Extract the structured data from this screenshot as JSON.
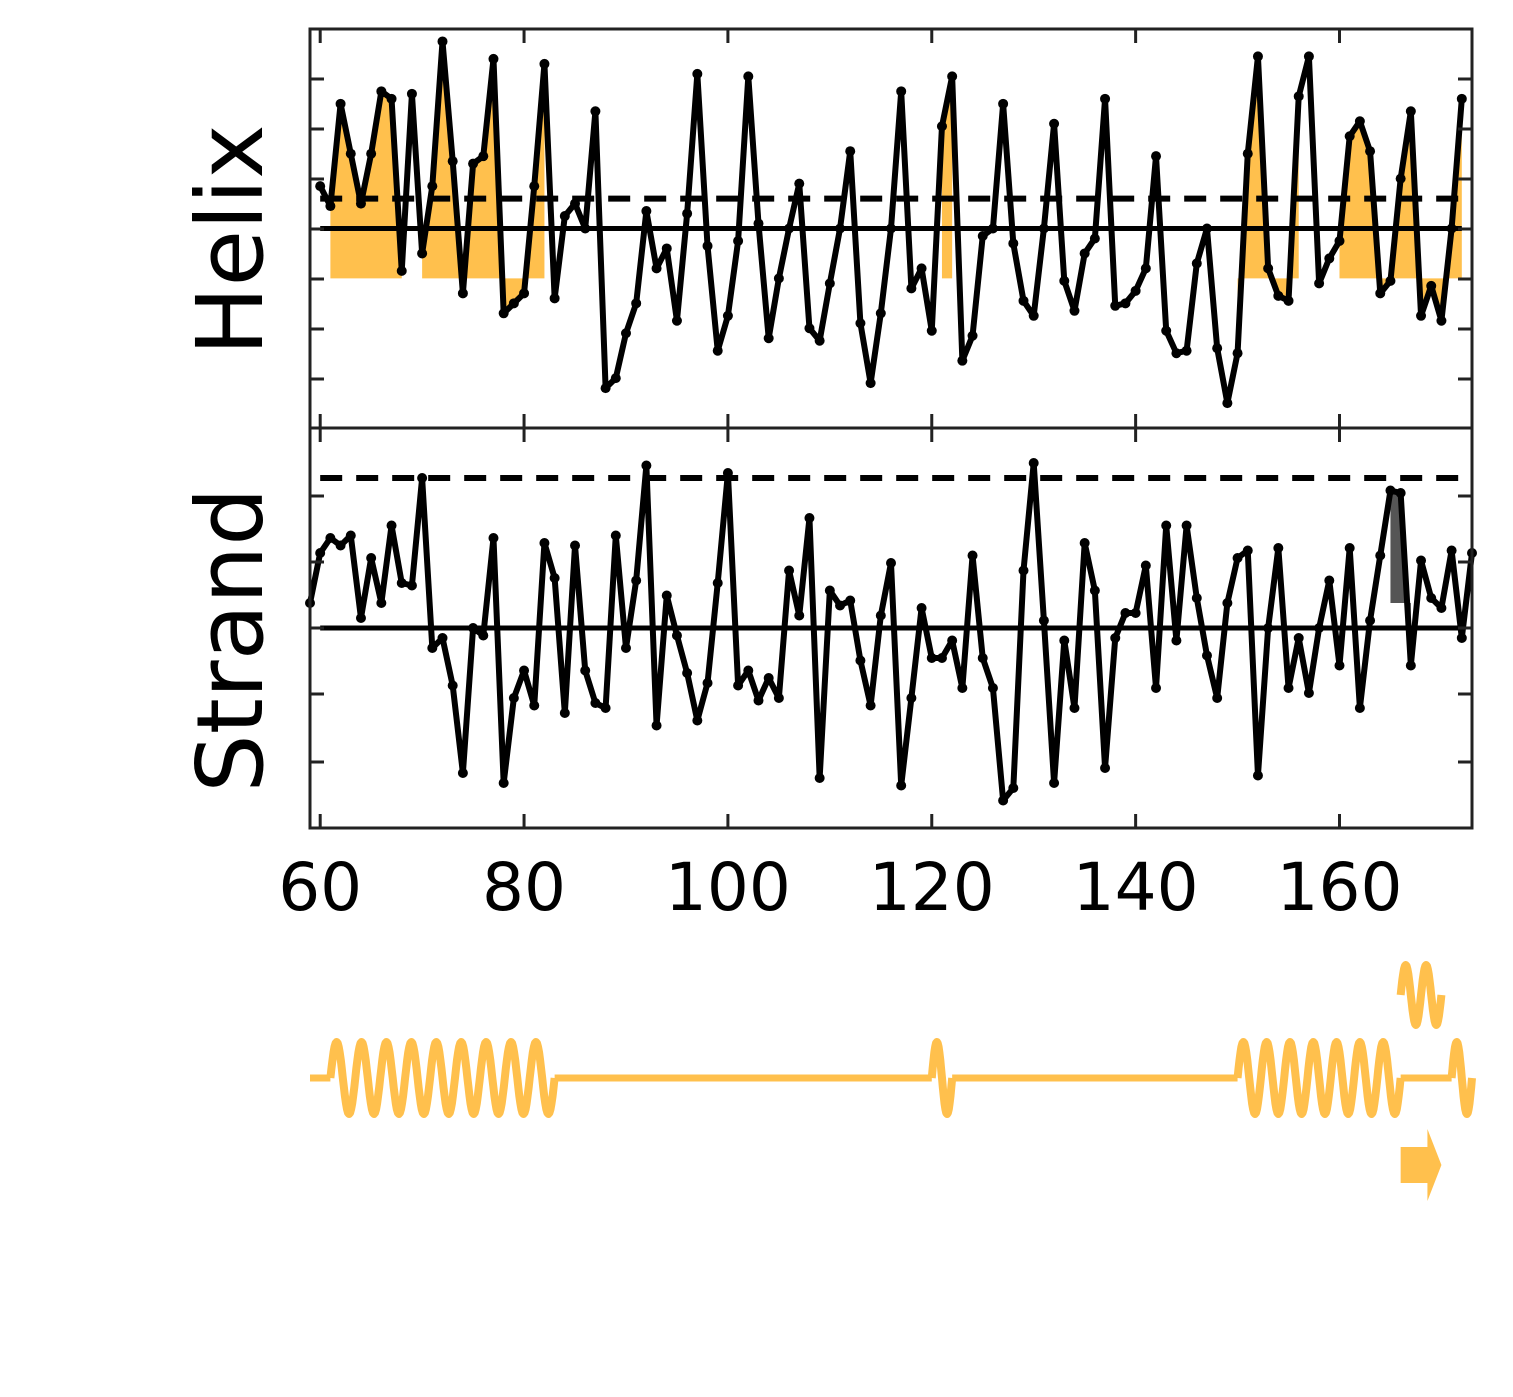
{
  "chart_data": [
    {
      "type": "line",
      "panel": "helix",
      "ylabel": "Helix",
      "xlim": [
        59,
        173
      ],
      "ylim": [
        -0.8,
        0.8
      ],
      "threshold_dashed": 0.12,
      "baseline_solid": 0.0,
      "fill_level": -0.2,
      "fill_color": "#ffc04d",
      "line_color": "#000000",
      "x": [
        60,
        61,
        62,
        63,
        64,
        65,
        66,
        67,
        68,
        69,
        70,
        71,
        72,
        73,
        74,
        75,
        76,
        77,
        78,
        79,
        80,
        81,
        82,
        83,
        84,
        85,
        86,
        87,
        88,
        89,
        90,
        91,
        92,
        93,
        94,
        95,
        96,
        97,
        98,
        99,
        100,
        101,
        102,
        103,
        104,
        105,
        106,
        107,
        108,
        109,
        110,
        111,
        112,
        113,
        114,
        115,
        116,
        117,
        118,
        119,
        120,
        121,
        122,
        123,
        124,
        125,
        126,
        127,
        128,
        129,
        130,
        131,
        132,
        133,
        134,
        135,
        136,
        137,
        138,
        139,
        140,
        141,
        142,
        143,
        144,
        145,
        146,
        147,
        148,
        149,
        150,
        151,
        152,
        153,
        154,
        155,
        156,
        157,
        158,
        159,
        160,
        161,
        162,
        163,
        164,
        165,
        166,
        167,
        168,
        169,
        170,
        171,
        172
      ],
      "y": [
        0.17,
        0.09,
        0.5,
        0.3,
        0.1,
        0.3,
        0.55,
        0.52,
        -0.17,
        0.54,
        -0.1,
        0.17,
        0.75,
        0.27,
        -0.26,
        0.26,
        0.29,
        0.68,
        -0.34,
        -0.3,
        -0.26,
        0.17,
        0.66,
        -0.28,
        0.05,
        0.1,
        0.0,
        0.47,
        -0.64,
        -0.6,
        -0.42,
        -0.3,
        0.07,
        -0.16,
        -0.08,
        -0.37,
        0.06,
        0.62,
        -0.07,
        -0.49,
        -0.35,
        -0.05,
        0.61,
        0.02,
        -0.44,
        -0.2,
        0.0,
        0.18,
        -0.4,
        -0.45,
        -0.22,
        0.0,
        0.31,
        -0.38,
        -0.62,
        -0.34,
        0.0,
        0.55,
        -0.24,
        -0.16,
        -0.41,
        0.41,
        0.61,
        -0.53,
        -0.43,
        -0.03,
        0.0,
        0.5,
        -0.06,
        -0.29,
        -0.35,
        0.0,
        0.42,
        -0.21,
        -0.33,
        -0.1,
        -0.04,
        0.52,
        -0.31,
        -0.3,
        -0.25,
        -0.16,
        0.29,
        -0.41,
        -0.5,
        -0.49,
        -0.14,
        0.0,
        -0.48,
        -0.7,
        -0.5,
        0.3,
        0.69,
        -0.16,
        -0.27,
        -0.29,
        0.53,
        0.69,
        -0.22,
        -0.12,
        -0.05,
        0.37,
        0.43,
        0.31,
        -0.26,
        -0.21,
        0.2,
        0.47,
        -0.35,
        -0.23,
        -0.37,
        0.0,
        0.52
      ]
    },
    {
      "type": "line",
      "panel": "strand",
      "ylabel": "Strand",
      "xlim": [
        59,
        173
      ],
      "ylim": [
        -0.8,
        0.8
      ],
      "threshold_dashed": 0.6,
      "baseline_solid": 0.0,
      "fill_level": 0.1,
      "fill_color": "#555555",
      "line_color": "#000000",
      "x": [
        59,
        60,
        61,
        62,
        63,
        64,
        65,
        66,
        67,
        68,
        69,
        70,
        71,
        72,
        73,
        74,
        75,
        76,
        77,
        78,
        79,
        80,
        81,
        82,
        83,
        84,
        85,
        86,
        87,
        88,
        89,
        90,
        91,
        92,
        93,
        94,
        95,
        96,
        97,
        98,
        99,
        100,
        101,
        102,
        103,
        104,
        105,
        106,
        107,
        108,
        109,
        110,
        111,
        112,
        113,
        114,
        115,
        116,
        117,
        118,
        119,
        120,
        121,
        122,
        123,
        124,
        125,
        126,
        127,
        128,
        129,
        130,
        131,
        132,
        133,
        134,
        135,
        136,
        137,
        138,
        139,
        140,
        141,
        142,
        143,
        144,
        145,
        146,
        147,
        148,
        149,
        150,
        151,
        152,
        153,
        154,
        155,
        156,
        157,
        158,
        159,
        160,
        161,
        162,
        163,
        164,
        165,
        166,
        167,
        168,
        169,
        170,
        171,
        172,
        173
      ],
      "y": [
        0.1,
        0.3,
        0.36,
        0.33,
        0.37,
        0.04,
        0.28,
        0.1,
        0.41,
        0.18,
        0.17,
        0.6,
        -0.08,
        -0.04,
        -0.23,
        -0.58,
        0.0,
        -0.03,
        0.36,
        -0.62,
        -0.28,
        -0.17,
        -0.31,
        0.34,
        0.2,
        -0.34,
        0.33,
        -0.17,
        -0.3,
        -0.32,
        0.37,
        -0.08,
        0.19,
        0.65,
        -0.39,
        0.13,
        -0.03,
        -0.18,
        -0.37,
        -0.22,
        0.18,
        0.62,
        -0.23,
        -0.17,
        -0.29,
        -0.2,
        -0.28,
        0.23,
        0.05,
        0.44,
        -0.6,
        0.15,
        0.09,
        0.11,
        -0.13,
        -0.31,
        0.05,
        0.26,
        -0.63,
        -0.28,
        0.08,
        -0.12,
        -0.12,
        -0.05,
        -0.24,
        0.29,
        -0.12,
        -0.24,
        -0.69,
        -0.64,
        0.23,
        0.66,
        0.03,
        -0.62,
        -0.05,
        -0.32,
        0.34,
        0.15,
        -0.56,
        -0.04,
        0.06,
        0.06,
        0.25,
        -0.24,
        0.41,
        -0.05,
        0.41,
        0.12,
        -0.11,
        -0.28,
        0.1,
        0.28,
        0.31,
        -0.59,
        0.0,
        0.32,
        -0.24,
        -0.04,
        -0.26,
        0.0,
        0.19,
        -0.15,
        0.32,
        -0.32,
        0.03,
        0.29,
        0.55,
        0.54,
        -0.15,
        0.27,
        0.12,
        0.08,
        0.31,
        -0.04,
        0.3
      ]
    }
  ],
  "x_axis": {
    "ticks": [
      60,
      80,
      100,
      120,
      140,
      160
    ],
    "tick_labels": [
      "60",
      "80",
      "100",
      "120",
      "140",
      "160"
    ]
  },
  "helix_fill_regions": [
    [
      61,
      68
    ],
    [
      70,
      82
    ],
    [
      121,
      122
    ],
    [
      150,
      156
    ],
    [
      160,
      172
    ]
  ],
  "strand_fill_regions": [
    [
      165,
      167
    ]
  ],
  "secondary_structure": {
    "color": "#ffc04d",
    "helix_spans": [
      [
        61,
        83
      ],
      [
        120,
        122
      ],
      [
        150,
        166
      ],
      [
        171,
        173
      ]
    ],
    "coil_spans": [
      [
        59,
        61
      ],
      [
        83,
        120
      ],
      [
        122,
        150
      ],
      [
        166,
        171
      ]
    ],
    "stacked_helix": [
      166,
      170
    ],
    "strand_arrow": [
      166,
      170
    ]
  }
}
